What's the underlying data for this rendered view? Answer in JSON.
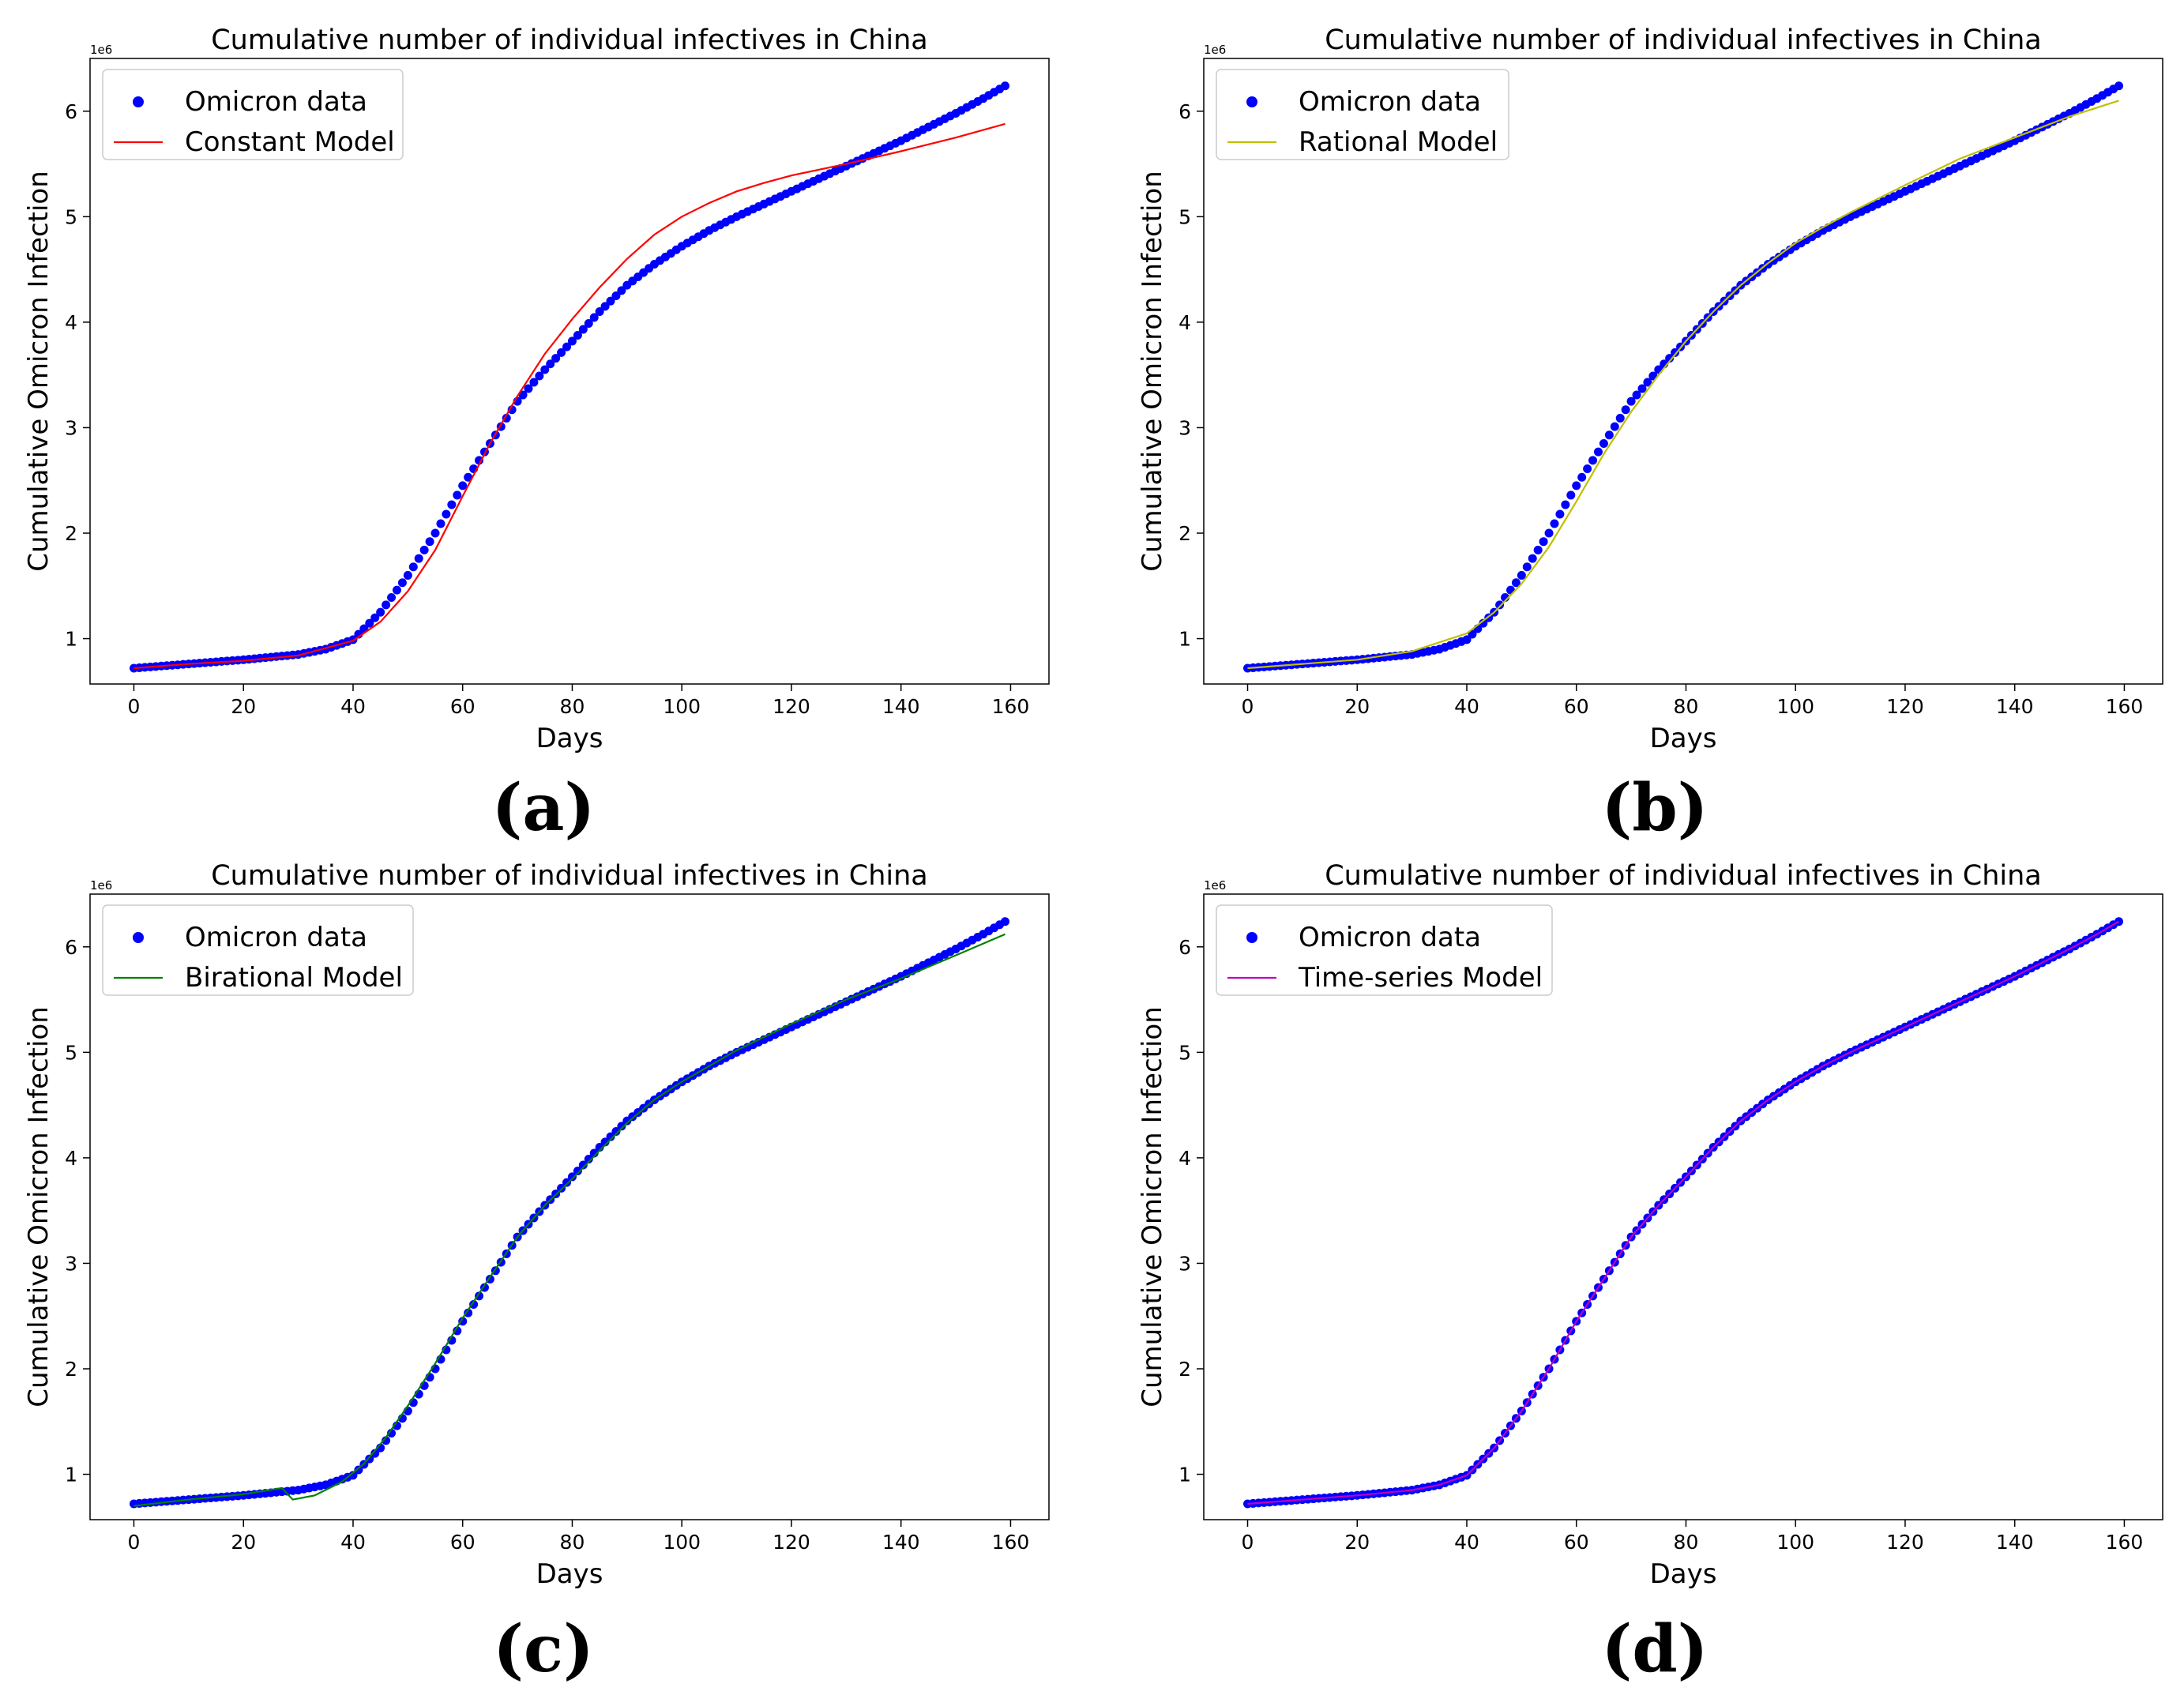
{
  "figure": {
    "panels": [
      {
        "caption": "(a)"
      },
      {
        "caption": "(b)"
      },
      {
        "caption": "(c)"
      },
      {
        "caption": "(d)"
      }
    ]
  },
  "chart_data": [
    {
      "type": "line",
      "title": "Cumulative number of individual infectives in China",
      "xlabel": "Days",
      "ylabel": "Cumulative Omicron Infection",
      "y_multiplier_label": "1e6",
      "xlim": [
        -8,
        167
      ],
      "ylim": [
        0.57,
        6.5
      ],
      "xticks": [
        0,
        20,
        40,
        60,
        80,
        100,
        120,
        140,
        160
      ],
      "yticks": [
        1,
        2,
        3,
        4,
        5,
        6
      ],
      "grid": false,
      "legend_position": "upper-left",
      "series": [
        {
          "name": "Omicron data",
          "kind": "scatter",
          "color": "#0000ff",
          "x": [
            0,
            10,
            20,
            30,
            35,
            40,
            45,
            50,
            55,
            60,
            65,
            70,
            75,
            80,
            85,
            90,
            95,
            100,
            105,
            110,
            115,
            120,
            125,
            130,
            135,
            140,
            145,
            150,
            155,
            159
          ],
          "y": [
            0.72,
            0.76,
            0.8,
            0.85,
            0.9,
            0.99,
            1.25,
            1.6,
            2.0,
            2.45,
            2.85,
            3.25,
            3.55,
            3.82,
            4.1,
            4.35,
            4.55,
            4.72,
            4.87,
            5.0,
            5.12,
            5.24,
            5.36,
            5.48,
            5.6,
            5.72,
            5.85,
            5.98,
            6.12,
            6.24
          ]
        },
        {
          "name": "Constant Model",
          "kind": "line",
          "color": "#ff0000",
          "x": [
            0,
            10,
            20,
            30,
            40,
            45,
            50,
            55,
            60,
            65,
            70,
            75,
            80,
            85,
            90,
            95,
            100,
            105,
            110,
            115,
            120,
            130,
            140,
            150,
            159
          ],
          "y": [
            0.72,
            0.76,
            0.79,
            0.84,
            0.98,
            1.16,
            1.45,
            1.84,
            2.35,
            2.85,
            3.3,
            3.7,
            4.03,
            4.33,
            4.6,
            4.83,
            5.0,
            5.13,
            5.24,
            5.32,
            5.39,
            5.5,
            5.62,
            5.75,
            5.88
          ]
        }
      ]
    },
    {
      "type": "line",
      "title": "Cumulative number of individual infectives in China",
      "xlabel": "Days",
      "ylabel": "Cumulative Omicron Infection",
      "y_multiplier_label": "1e6",
      "xlim": [
        -8,
        167
      ],
      "ylim": [
        0.57,
        6.5
      ],
      "xticks": [
        0,
        20,
        40,
        60,
        80,
        100,
        120,
        140,
        160
      ],
      "yticks": [
        1,
        2,
        3,
        4,
        5,
        6
      ],
      "grid": false,
      "legend_position": "upper-left",
      "series": [
        {
          "name": "Omicron data",
          "kind": "scatter",
          "color": "#0000ff",
          "x": [
            0,
            10,
            20,
            30,
            35,
            40,
            45,
            50,
            55,
            60,
            65,
            70,
            75,
            80,
            85,
            90,
            95,
            100,
            105,
            110,
            115,
            120,
            125,
            130,
            135,
            140,
            145,
            150,
            155,
            159
          ],
          "y": [
            0.72,
            0.76,
            0.8,
            0.85,
            0.9,
            0.99,
            1.25,
            1.6,
            2.0,
            2.45,
            2.85,
            3.25,
            3.55,
            3.82,
            4.1,
            4.35,
            4.55,
            4.72,
            4.87,
            5.0,
            5.12,
            5.24,
            5.36,
            5.48,
            5.6,
            5.72,
            5.85,
            5.98,
            6.12,
            6.24
          ]
        },
        {
          "name": "Rational Model",
          "kind": "line",
          "color": "#bfbf00",
          "x": [
            0,
            10,
            20,
            30,
            40,
            45,
            50,
            55,
            60,
            65,
            70,
            75,
            80,
            85,
            90,
            95,
            100,
            105,
            110,
            120,
            130,
            140,
            150,
            159
          ],
          "y": [
            0.72,
            0.76,
            0.8,
            0.88,
            1.05,
            1.25,
            1.52,
            1.87,
            2.3,
            2.75,
            3.15,
            3.5,
            3.82,
            4.1,
            4.35,
            4.56,
            4.75,
            4.9,
            5.04,
            5.3,
            5.55,
            5.75,
            5.95,
            6.1
          ]
        }
      ]
    },
    {
      "type": "line",
      "title": "Cumulative number of individual infectives in China",
      "xlabel": "Days",
      "ylabel": "Cumulative Omicron Infection",
      "y_multiplier_label": "1e6",
      "xlim": [
        -8,
        167
      ],
      "ylim": [
        0.57,
        6.5
      ],
      "xticks": [
        0,
        20,
        40,
        60,
        80,
        100,
        120,
        140,
        160
      ],
      "yticks": [
        1,
        2,
        3,
        4,
        5,
        6
      ],
      "grid": false,
      "legend_position": "upper-left",
      "series": [
        {
          "name": "Omicron data",
          "kind": "scatter",
          "color": "#0000ff",
          "x": [
            0,
            10,
            20,
            30,
            35,
            40,
            45,
            50,
            55,
            60,
            65,
            70,
            75,
            80,
            85,
            90,
            95,
            100,
            105,
            110,
            115,
            120,
            125,
            130,
            135,
            140,
            145,
            150,
            155,
            159
          ],
          "y": [
            0.72,
            0.76,
            0.8,
            0.85,
            0.9,
            0.99,
            1.25,
            1.6,
            2.0,
            2.45,
            2.85,
            3.25,
            3.55,
            3.82,
            4.1,
            4.35,
            4.55,
            4.72,
            4.87,
            5.0,
            5.12,
            5.24,
            5.36,
            5.48,
            5.6,
            5.72,
            5.85,
            5.98,
            6.12,
            6.24
          ]
        },
        {
          "name": "Birational Model",
          "kind": "line",
          "color": "#008000",
          "x": [
            0,
            10,
            20,
            27,
            29,
            33,
            38,
            42,
            46,
            50,
            55,
            60,
            65,
            70,
            75,
            80,
            85,
            90,
            95,
            100,
            110,
            120,
            130,
            140,
            150,
            159
          ],
          "y": [
            0.7,
            0.76,
            0.81,
            0.87,
            0.76,
            0.8,
            0.93,
            1.1,
            1.35,
            1.65,
            2.05,
            2.48,
            2.87,
            3.25,
            3.55,
            3.8,
            4.07,
            4.33,
            4.55,
            4.72,
            5.02,
            5.27,
            5.5,
            5.7,
            5.92,
            6.12
          ]
        }
      ]
    },
    {
      "type": "line",
      "title": "Cumulative number of individual infectives in China",
      "xlabel": "Days",
      "ylabel": "Cumulative Omicron Infection",
      "y_multiplier_label": "1e6",
      "xlim": [
        -8,
        167
      ],
      "ylim": [
        0.57,
        6.5
      ],
      "xticks": [
        0,
        20,
        40,
        60,
        80,
        100,
        120,
        140,
        160
      ],
      "yticks": [
        1,
        2,
        3,
        4,
        5,
        6
      ],
      "grid": false,
      "legend_position": "upper-left",
      "series": [
        {
          "name": "Omicron data",
          "kind": "scatter",
          "color": "#0000ff",
          "x": [
            0,
            10,
            20,
            30,
            35,
            40,
            45,
            50,
            55,
            60,
            65,
            70,
            75,
            80,
            85,
            90,
            95,
            100,
            105,
            110,
            115,
            120,
            125,
            130,
            135,
            140,
            145,
            150,
            155,
            159
          ],
          "y": [
            0.72,
            0.76,
            0.8,
            0.85,
            0.9,
            0.99,
            1.25,
            1.6,
            2.0,
            2.45,
            2.85,
            3.25,
            3.55,
            3.82,
            4.1,
            4.35,
            4.55,
            4.72,
            4.87,
            5.0,
            5.12,
            5.24,
            5.36,
            5.48,
            5.6,
            5.72,
            5.85,
            5.98,
            6.12,
            6.24
          ]
        },
        {
          "name": "Time-series Model",
          "kind": "line",
          "color": "#bf00bf",
          "x": [
            0,
            10,
            20,
            30,
            35,
            40,
            45,
            50,
            55,
            60,
            65,
            70,
            75,
            80,
            85,
            90,
            95,
            100,
            105,
            110,
            115,
            120,
            125,
            130,
            135,
            140,
            145,
            150,
            155,
            159
          ],
          "y": [
            0.72,
            0.76,
            0.8,
            0.85,
            0.9,
            0.99,
            1.25,
            1.6,
            2.0,
            2.45,
            2.85,
            3.25,
            3.55,
            3.82,
            4.1,
            4.35,
            4.55,
            4.72,
            4.87,
            5.0,
            5.12,
            5.24,
            5.36,
            5.48,
            5.6,
            5.72,
            5.85,
            5.98,
            6.12,
            6.24
          ]
        }
      ]
    }
  ]
}
